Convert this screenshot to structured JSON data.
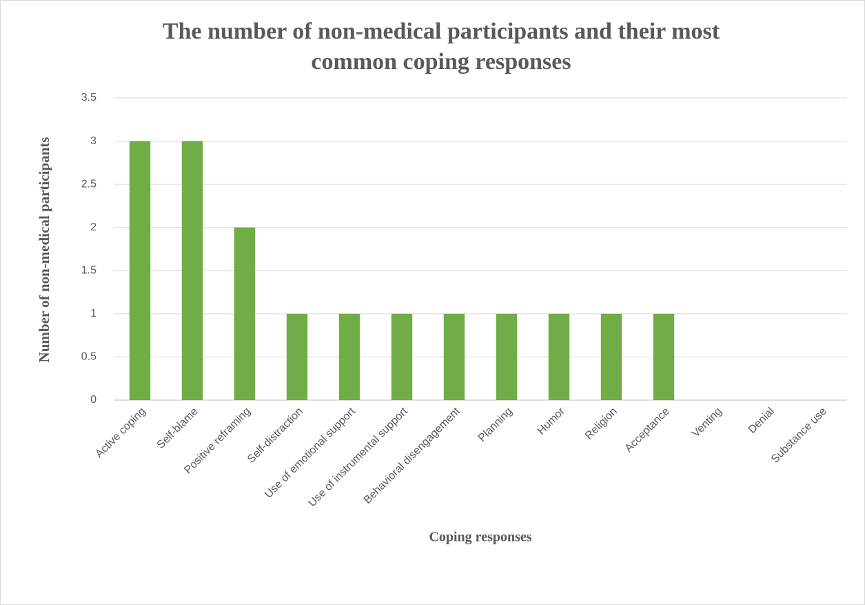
{
  "chart_data": {
    "type": "bar",
    "title": "The number of non-medical participants and their most common coping responses",
    "x_label": "Coping responses",
    "y_label": "Number of non-medical participants",
    "categories": [
      "Active coping",
      "Self-blame",
      "Positive reframing",
      "Self-distraction",
      "Use of emotional support",
      "Use of instrumental support",
      "Behavioral disengagement",
      "Planning",
      "Humor",
      "Religion",
      "Acceptance",
      "Venting",
      "Denial",
      "Substance use"
    ],
    "values": [
      3,
      3,
      2,
      1,
      1,
      1,
      1,
      1,
      1,
      1,
      1,
      0,
      0,
      0
    ],
    "color": "#70ad47",
    "ylim": [
      0,
      3.5
    ],
    "yticks": [
      0,
      0.5,
      1,
      1.5,
      2,
      2.5,
      3,
      3.5
    ],
    "grid": true
  }
}
